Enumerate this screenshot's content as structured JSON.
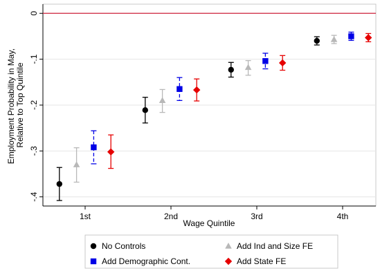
{
  "chart_data": {
    "type": "scatter",
    "title": "",
    "xlabel": "Wage Quintile",
    "ylabel": "Employment Probability in May,\nRelative to Top Quintile",
    "ylim": [
      -0.42,
      0.02
    ],
    "yticks": [
      0,
      -0.1,
      -0.2,
      -0.3,
      -0.4
    ],
    "ytick_labels": [
      "0",
      "-.1",
      "-.2",
      "-.3",
      "-.4"
    ],
    "categories": [
      "1st",
      "2nd",
      "3rd",
      "4th"
    ],
    "reference_line": {
      "y": 0,
      "color": "#cc1f3a"
    },
    "grid": true,
    "legend_position": "bottom",
    "series": [
      {
        "name": "No Controls",
        "color": "#000000",
        "marker": "circle",
        "offset": -0.3,
        "values": [
          -0.372,
          -0.211,
          -0.123,
          -0.06
        ],
        "lower": [
          -0.408,
          -0.239,
          -0.139,
          -0.069
        ],
        "upper": [
          -0.336,
          -0.183,
          -0.107,
          -0.051
        ]
      },
      {
        "name": "Add Ind and Size FE",
        "color": "#b8b8b8",
        "marker": "triangle",
        "offset": -0.1,
        "values": [
          -0.33,
          -0.19,
          -0.118,
          -0.057
        ],
        "lower": [
          -0.368,
          -0.216,
          -0.135,
          -0.066
        ],
        "upper": [
          -0.293,
          -0.166,
          -0.103,
          -0.048
        ]
      },
      {
        "name": "Add Demographic Cont.",
        "color": "#0000e6",
        "marker": "square",
        "offset": 0.1,
        "dashed": true,
        "values": [
          -0.292,
          -0.165,
          -0.104,
          -0.05
        ],
        "lower": [
          -0.328,
          -0.19,
          -0.121,
          -0.059
        ],
        "upper": [
          -0.256,
          -0.14,
          -0.087,
          -0.041
        ]
      },
      {
        "name": "Add State FE",
        "color": "#e60000",
        "marker": "diamond",
        "offset": 0.3,
        "values": [
          -0.302,
          -0.167,
          -0.108,
          -0.053
        ],
        "lower": [
          -0.338,
          -0.191,
          -0.124,
          -0.062
        ],
        "upper": [
          -0.265,
          -0.143,
          -0.092,
          -0.044
        ]
      }
    ]
  }
}
